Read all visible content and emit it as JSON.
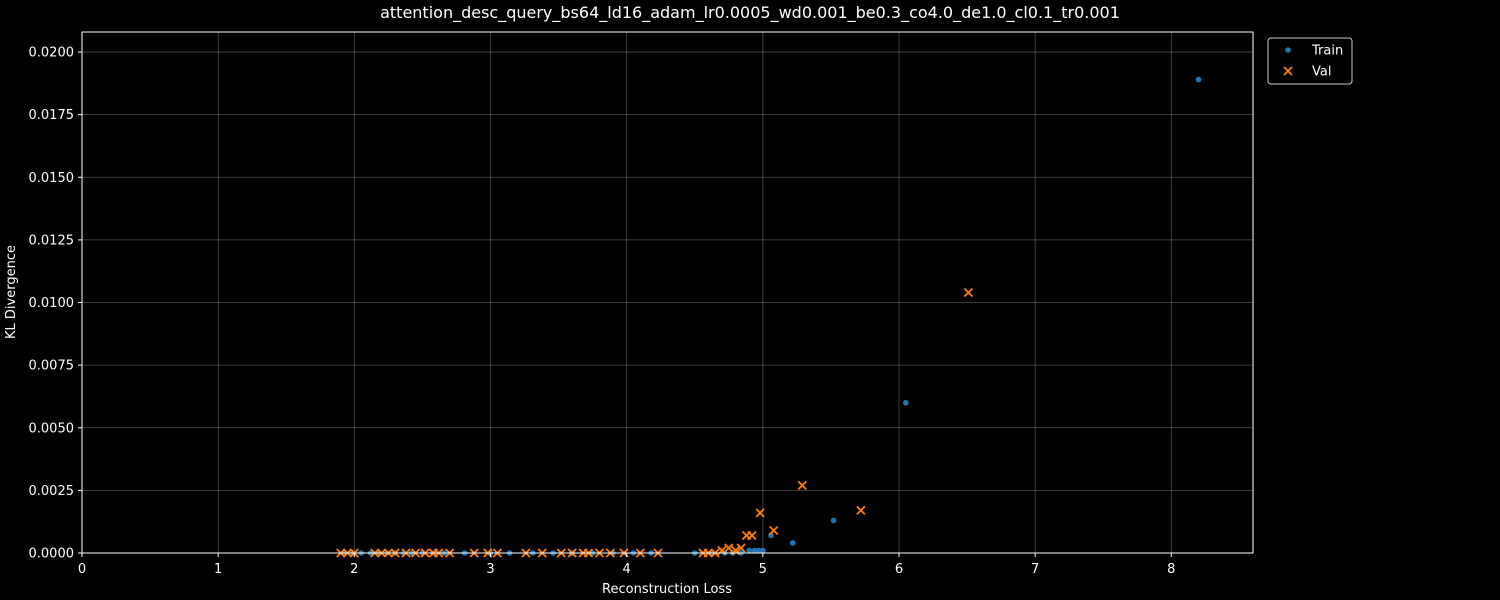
{
  "chart_data": {
    "type": "scatter",
    "title": "attention_desc_query_bs64_ld16_adam_lr0.0005_wd0.001_be0.3_co4.0_de1.0_cl0.1_tr0.001",
    "xlabel": "Reconstruction Loss",
    "ylabel": "KL Divergence",
    "xlim": [
      0,
      8.6
    ],
    "ylim": [
      0,
      0.0208
    ],
    "xticks": [
      "0",
      "1",
      "2",
      "3",
      "4",
      "5",
      "6",
      "7",
      "8"
    ],
    "yticks": [
      "0.0000",
      "0.0025",
      "0.0050",
      "0.0075",
      "0.0100",
      "0.0125",
      "0.0150",
      "0.0175",
      "0.0200"
    ],
    "grid": true,
    "legend_position": "outside-top-right",
    "series": [
      {
        "name": "Train",
        "marker": "dot",
        "color": "#1f77b4",
        "points": [
          [
            1.93,
            0.0
          ],
          [
            1.99,
            0.0
          ],
          [
            2.05,
            0.0
          ],
          [
            2.12,
            0.0
          ],
          [
            2.18,
            0.0
          ],
          [
            2.24,
            0.0
          ],
          [
            2.3,
            0.0
          ],
          [
            2.36,
            0.0
          ],
          [
            2.42,
            0.0
          ],
          [
            2.5,
            0.0
          ],
          [
            2.58,
            0.0
          ],
          [
            2.66,
            0.0
          ],
          [
            2.81,
            0.0
          ],
          [
            3.0,
            0.0
          ],
          [
            3.14,
            0.0
          ],
          [
            3.31,
            0.0
          ],
          [
            3.46,
            0.0
          ],
          [
            3.6,
            0.0
          ],
          [
            3.75,
            0.0
          ],
          [
            3.9,
            0.0
          ],
          [
            4.05,
            0.0
          ],
          [
            4.18,
            0.0
          ],
          [
            4.5,
            0.0
          ],
          [
            4.62,
            0.0
          ],
          [
            4.72,
            0.0
          ],
          [
            4.78,
            0.0
          ],
          [
            4.84,
            0.0
          ],
          [
            4.9,
            0.0001
          ],
          [
            4.94,
            0.0001
          ],
          [
            4.97,
            0.0001
          ],
          [
            5.0,
            0.0001
          ],
          [
            5.06,
            0.0007
          ],
          [
            5.22,
            0.0004
          ],
          [
            5.52,
            0.0013
          ],
          [
            6.05,
            0.006
          ],
          [
            8.2,
            0.0189
          ]
        ]
      },
      {
        "name": "Val",
        "marker": "x",
        "color": "#ff7f0e",
        "points": [
          [
            1.9,
            0.0
          ],
          [
            1.95,
            0.0
          ],
          [
            2.0,
            0.0
          ],
          [
            2.15,
            0.0
          ],
          [
            2.2,
            0.0
          ],
          [
            2.25,
            0.0
          ],
          [
            2.3,
            0.0
          ],
          [
            2.38,
            0.0
          ],
          [
            2.45,
            0.0
          ],
          [
            2.52,
            0.0
          ],
          [
            2.58,
            0.0
          ],
          [
            2.62,
            0.0
          ],
          [
            2.7,
            0.0
          ],
          [
            2.88,
            0.0
          ],
          [
            2.98,
            0.0
          ],
          [
            3.05,
            0.0
          ],
          [
            3.26,
            0.0
          ],
          [
            3.38,
            0.0
          ],
          [
            3.52,
            0.0
          ],
          [
            3.6,
            0.0
          ],
          [
            3.68,
            0.0
          ],
          [
            3.72,
            0.0
          ],
          [
            3.8,
            0.0
          ],
          [
            3.88,
            0.0
          ],
          [
            3.98,
            0.0
          ],
          [
            4.1,
            0.0
          ],
          [
            4.23,
            0.0
          ],
          [
            4.56,
            0.0
          ],
          [
            4.6,
            0.0
          ],
          [
            4.65,
            0.0
          ],
          [
            4.7,
            0.0001
          ],
          [
            4.75,
            0.0002
          ],
          [
            4.8,
            0.0001
          ],
          [
            4.84,
            0.0002
          ],
          [
            4.88,
            0.0007
          ],
          [
            4.92,
            0.0007
          ],
          [
            4.98,
            0.0016
          ],
          [
            5.08,
            0.0009
          ],
          [
            5.29,
            0.0027
          ],
          [
            5.72,
            0.0017
          ],
          [
            6.51,
            0.0104
          ]
        ]
      }
    ]
  }
}
